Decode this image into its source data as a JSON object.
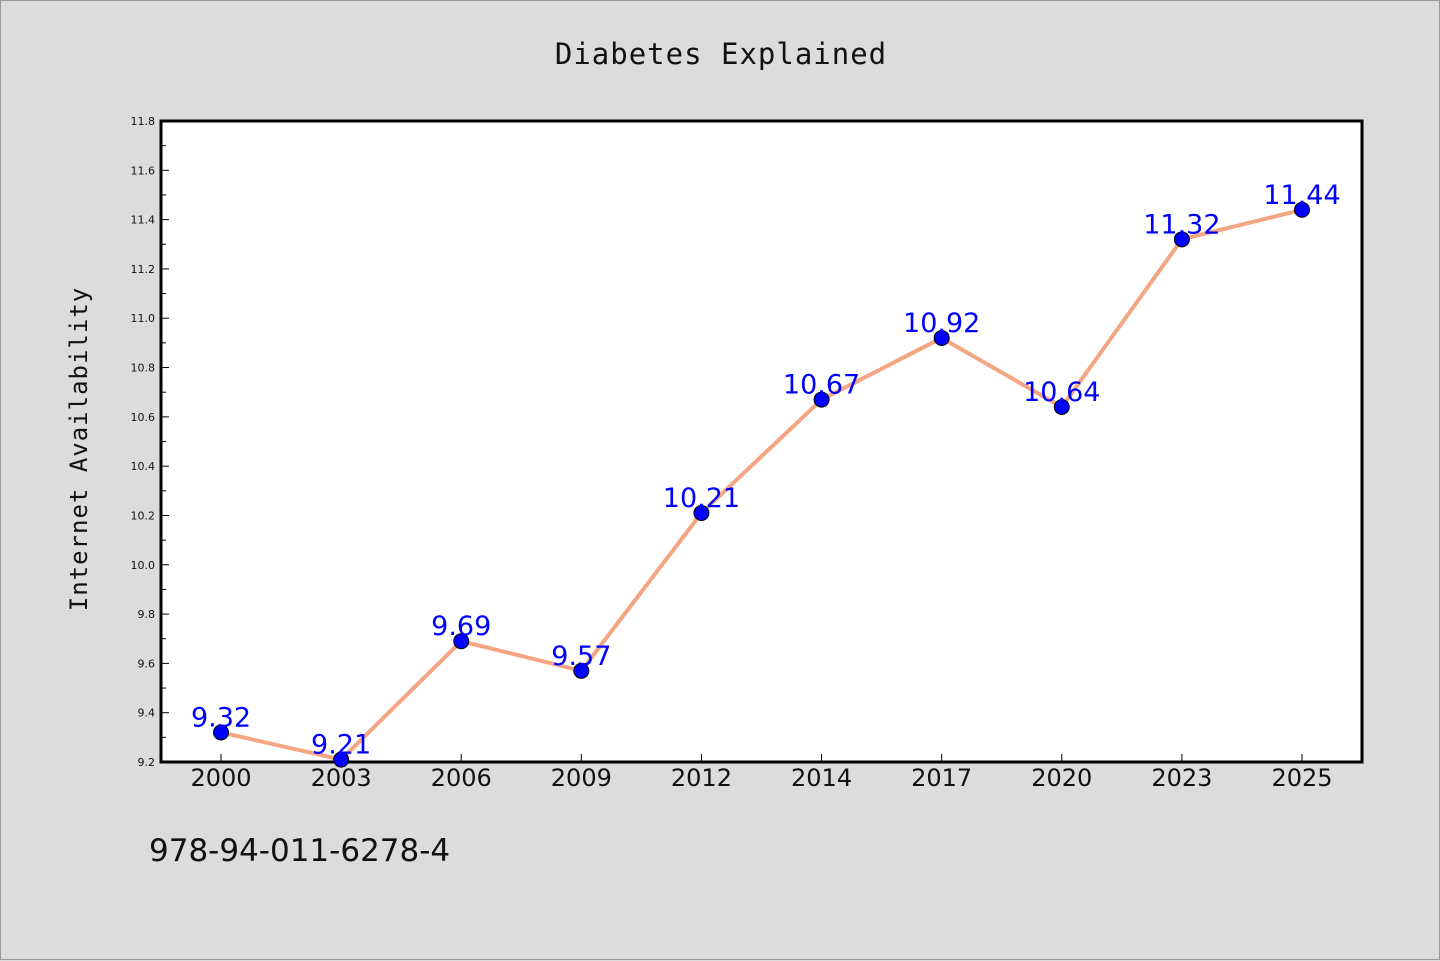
{
  "chart_data": {
    "type": "line",
    "title": "Diabetes Explained",
    "xlabel": "",
    "ylabel": "Internet Availability",
    "categories": [
      "2000",
      "2003",
      "2006",
      "2009",
      "2012",
      "2014",
      "2017",
      "2020",
      "2023",
      "2025"
    ],
    "series": [
      {
        "values": [
          9.32,
          9.21,
          9.69,
          9.57,
          10.21,
          10.67,
          10.92,
          10.64,
          11.32,
          11.44
        ],
        "line_color": "#f4a582",
        "marker_color": "#0000ff"
      }
    ],
    "data_labels": [
      "9.32",
      "9.21",
      "9.69",
      "9.57",
      "10.21",
      "10.67",
      "10.92",
      "10.64",
      "11.32",
      "11.44"
    ],
    "ylim": [
      9.2,
      11.8
    ],
    "yticks": [
      "9.2",
      "9.4",
      "9.6",
      "9.8",
      "10.0",
      "10.2",
      "10.4",
      "10.6",
      "10.8",
      "11.0",
      "11.2",
      "11.4",
      "11.6",
      "11.8"
    ],
    "grid": false,
    "legend": "none"
  },
  "footer_code": "978-94-011-6278-4"
}
